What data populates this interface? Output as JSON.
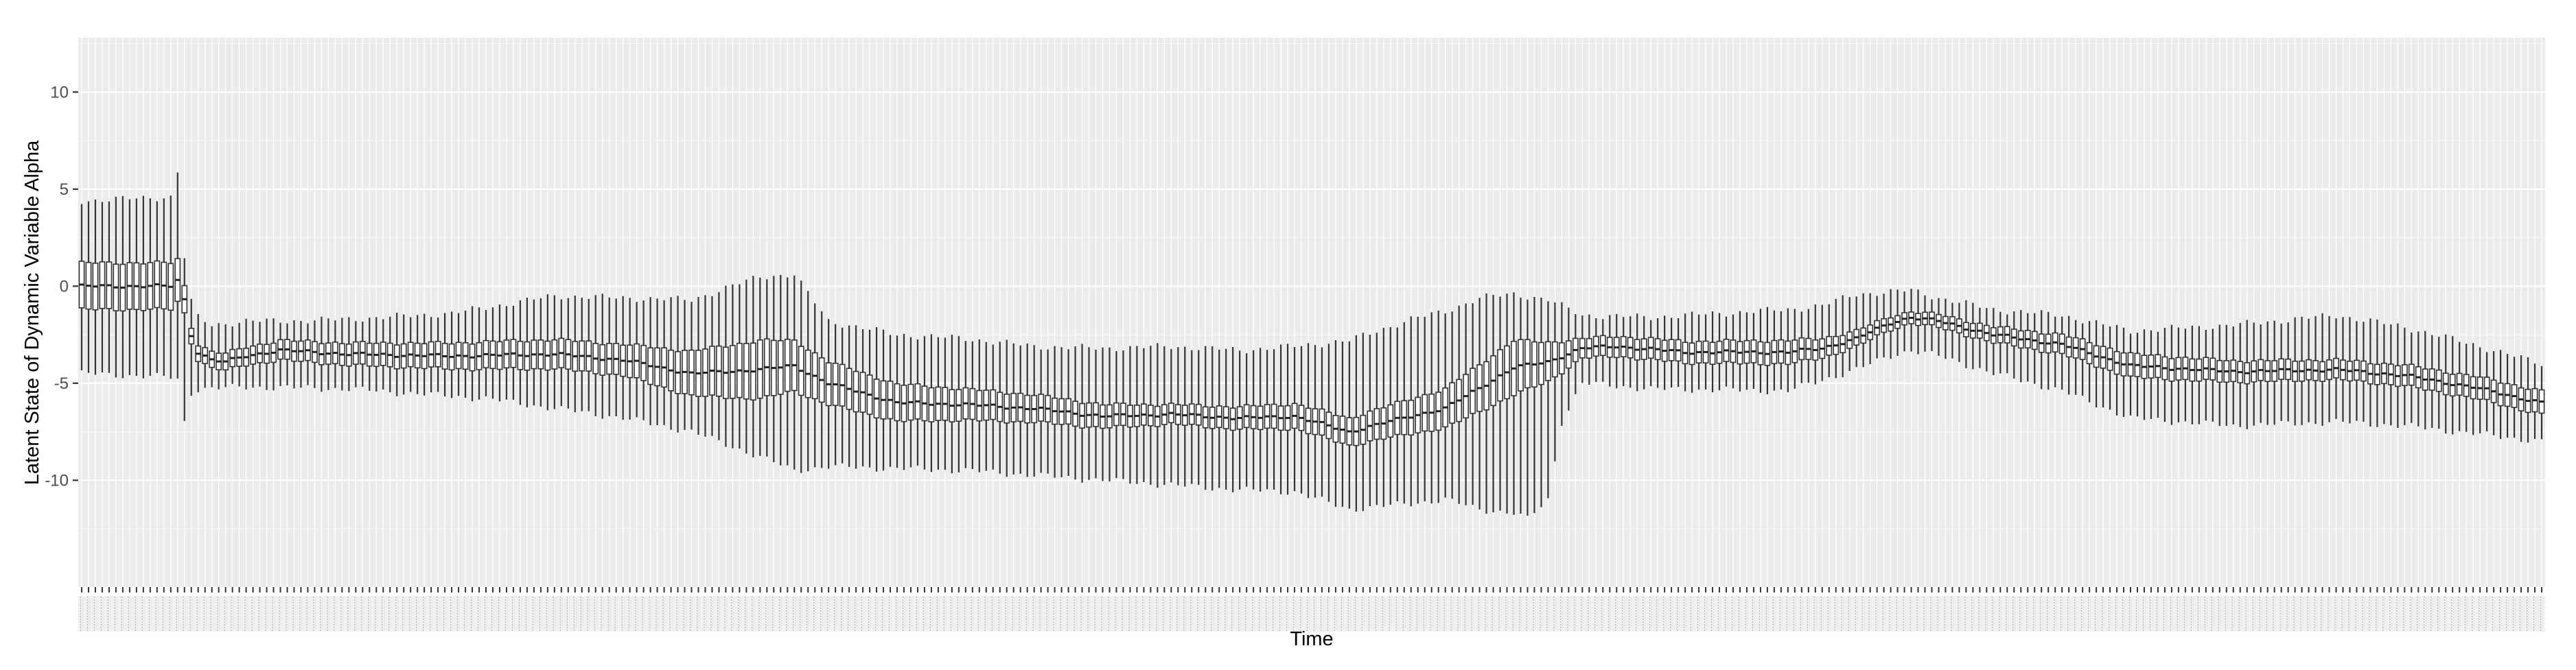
{
  "chart_data": {
    "type": "boxplot",
    "title": "",
    "xlabel": "Time",
    "ylabel": "Latent State of Dynamic Variable Alpha",
    "ylim": [
      -15.5,
      12.8
    ],
    "yticks": [
      -10,
      -5,
      0,
      5,
      10
    ],
    "grid": true,
    "legend": "none",
    "n_time_points": 360,
    "x_tick_labels": "unreadable (one per time point)",
    "median_knots": [
      [
        1,
        0.0
      ],
      [
        14,
        0.0
      ],
      [
        15,
        0.3
      ],
      [
        16,
        -0.7
      ],
      [
        17,
        -2.5
      ],
      [
        18,
        -3.4
      ],
      [
        20,
        -3.8
      ],
      [
        22,
        -3.9
      ],
      [
        25,
        -3.6
      ],
      [
        30,
        -3.3
      ],
      [
        40,
        -3.5
      ],
      [
        55,
        -3.6
      ],
      [
        70,
        -3.5
      ],
      [
        80,
        -3.8
      ],
      [
        90,
        -4.5
      ],
      [
        100,
        -4.3
      ],
      [
        105,
        -4.1
      ],
      [
        110,
        -5.0
      ],
      [
        120,
        -6.0
      ],
      [
        130,
        -6.1
      ],
      [
        140,
        -6.3
      ],
      [
        150,
        -6.7
      ],
      [
        160,
        -6.6
      ],
      [
        170,
        -6.8
      ],
      [
        178,
        -6.7
      ],
      [
        186,
        -7.5
      ],
      [
        195,
        -6.7
      ],
      [
        200,
        -6.3
      ],
      [
        210,
        -4.2
      ],
      [
        215,
        -3.9
      ],
      [
        220,
        -3.2
      ],
      [
        225,
        -3.1
      ],
      [
        235,
        -3.4
      ],
      [
        250,
        -3.4
      ],
      [
        255,
        -3.2
      ],
      [
        260,
        -2.7
      ],
      [
        265,
        -1.9
      ],
      [
        268,
        -1.6
      ],
      [
        272,
        -1.8
      ],
      [
        280,
        -2.5
      ],
      [
        290,
        -3.0
      ],
      [
        300,
        -4.1
      ],
      [
        315,
        -4.4
      ],
      [
        330,
        -4.3
      ],
      [
        340,
        -4.6
      ],
      [
        350,
        -5.2
      ],
      [
        360,
        -6.0
      ]
    ],
    "whisker_low_knots": [
      [
        1,
        -4.5
      ],
      [
        14,
        -4.7
      ],
      [
        15,
        -4.8
      ],
      [
        16,
        -7.0
      ],
      [
        17,
        -5.5
      ],
      [
        18,
        -5.3
      ],
      [
        25,
        -5.2
      ],
      [
        40,
        -5.3
      ],
      [
        60,
        -5.8
      ],
      [
        80,
        -6.8
      ],
      [
        90,
        -7.5
      ],
      [
        100,
        -8.8
      ],
      [
        105,
        -9.5
      ],
      [
        110,
        -9.3
      ],
      [
        130,
        -9.5
      ],
      [
        150,
        -10.0
      ],
      [
        170,
        -10.5
      ],
      [
        178,
        -10.6
      ],
      [
        186,
        -11.5
      ],
      [
        195,
        -11.2
      ],
      [
        200,
        -11.0
      ],
      [
        205,
        -11.5
      ],
      [
        210,
        -11.7
      ],
      [
        212,
        -12.0
      ],
      [
        215,
        -11.0
      ],
      [
        217,
        -7.0
      ],
      [
        220,
        -5.0
      ],
      [
        230,
        -5.3
      ],
      [
        250,
        -5.4
      ],
      [
        260,
        -4.3
      ],
      [
        265,
        -3.6
      ],
      [
        268,
        -3.3
      ],
      [
        272,
        -3.6
      ],
      [
        280,
        -4.5
      ],
      [
        290,
        -5.4
      ],
      [
        300,
        -6.8
      ],
      [
        315,
        -7.2
      ],
      [
        330,
        -7.0
      ],
      [
        340,
        -7.2
      ],
      [
        350,
        -7.6
      ],
      [
        360,
        -8.0
      ]
    ],
    "whisker_high_knots": [
      [
        1,
        4.4
      ],
      [
        14,
        4.6
      ],
      [
        15,
        5.9
      ],
      [
        16,
        1.5
      ],
      [
        17,
        -0.8
      ],
      [
        18,
        -1.6
      ],
      [
        20,
        -2.0
      ],
      [
        25,
        -1.8
      ],
      [
        30,
        -1.8
      ],
      [
        40,
        -1.7
      ],
      [
        55,
        -1.4
      ],
      [
        70,
        -0.5
      ],
      [
        80,
        -0.6
      ],
      [
        90,
        -0.7
      ],
      [
        100,
        0.5
      ],
      [
        105,
        0.6
      ],
      [
        110,
        -1.8
      ],
      [
        120,
        -2.5
      ],
      [
        130,
        -2.7
      ],
      [
        140,
        -3.1
      ],
      [
        150,
        -3.2
      ],
      [
        160,
        -3.1
      ],
      [
        170,
        -3.3
      ],
      [
        178,
        -3.1
      ],
      [
        186,
        -2.8
      ],
      [
        195,
        -1.7
      ],
      [
        200,
        -1.3
      ],
      [
        205,
        -0.6
      ],
      [
        210,
        -0.4
      ],
      [
        215,
        -0.7
      ],
      [
        220,
        -1.5
      ],
      [
        230,
        -1.6
      ],
      [
        250,
        -1.2
      ],
      [
        255,
        -1.0
      ],
      [
        260,
        -0.4
      ],
      [
        265,
        -0.3
      ],
      [
        268,
        -0.2
      ],
      [
        272,
        -0.6
      ],
      [
        280,
        -1.2
      ],
      [
        290,
        -1.5
      ],
      [
        300,
        -2.3
      ],
      [
        315,
        -2.0
      ],
      [
        330,
        -1.5
      ],
      [
        340,
        -2.1
      ],
      [
        350,
        -3.0
      ],
      [
        360,
        -4.0
      ]
    ],
    "box_halfwidth_knots": [
      [
        1,
        1.2
      ],
      [
        14,
        1.2
      ],
      [
        15,
        1.1
      ],
      [
        16,
        0.7
      ],
      [
        17,
        0.4
      ],
      [
        18,
        0.4
      ],
      [
        30,
        0.5
      ],
      [
        60,
        0.7
      ],
      [
        80,
        0.8
      ],
      [
        100,
        1.5
      ],
      [
        110,
        1.1
      ],
      [
        130,
        0.8
      ],
      [
        160,
        0.5
      ],
      [
        186,
        0.7
      ],
      [
        200,
        1.0
      ],
      [
        210,
        1.4
      ],
      [
        215,
        1.0
      ],
      [
        220,
        0.5
      ],
      [
        250,
        0.6
      ],
      [
        260,
        0.4
      ],
      [
        268,
        0.3
      ],
      [
        280,
        0.4
      ],
      [
        300,
        0.6
      ],
      [
        330,
        0.5
      ],
      [
        360,
        0.6
      ]
    ]
  }
}
